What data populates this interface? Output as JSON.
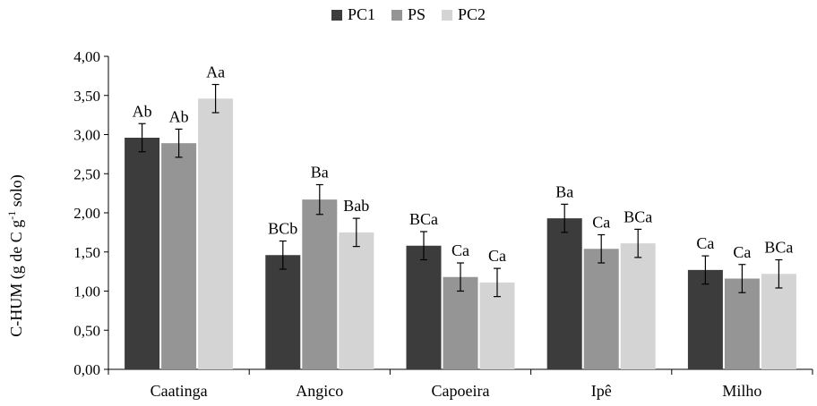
{
  "chart_data": {
    "type": "bar",
    "categories": [
      "Caatinga",
      "Angico",
      "Capoeira",
      "Ipê",
      "Milho"
    ],
    "series": [
      {
        "name": "PC1",
        "color": "#3c3c3c",
        "values": [
          2.96,
          1.46,
          1.58,
          1.93,
          1.27
        ],
        "errors": [
          0.18,
          0.18,
          0.18,
          0.18,
          0.18
        ],
        "labels": [
          "Ab",
          "BCb",
          "BCa",
          "Ba",
          "Ca"
        ]
      },
      {
        "name": "PS",
        "color": "#959595",
        "values": [
          2.89,
          2.17,
          1.18,
          1.54,
          1.16
        ],
        "errors": [
          0.18,
          0.19,
          0.18,
          0.18,
          0.18
        ],
        "labels": [
          "Ab",
          "Ba",
          "Ca",
          "Ca",
          "Ca"
        ]
      },
      {
        "name": "PC2",
        "color": "#d4d4d4",
        "values": [
          3.46,
          1.75,
          1.11,
          1.61,
          1.22
        ],
        "errors": [
          0.18,
          0.18,
          0.18,
          0.18,
          0.18
        ],
        "labels": [
          "Aa",
          "Bab",
          "Ca",
          "BCa",
          "BCa"
        ]
      }
    ],
    "ylabel": {
      "prefix": "C-HUM (g de C g",
      "sup": "-1",
      "suffix": " solo)"
    },
    "ylim": [
      0,
      4.0
    ],
    "yticks": [
      "0,00",
      "0,50",
      "1,00",
      "1,50",
      "2,00",
      "2,50",
      "3,00",
      "3,50",
      "4,00"
    ],
    "grid": false,
    "legend_position": "top-center"
  }
}
